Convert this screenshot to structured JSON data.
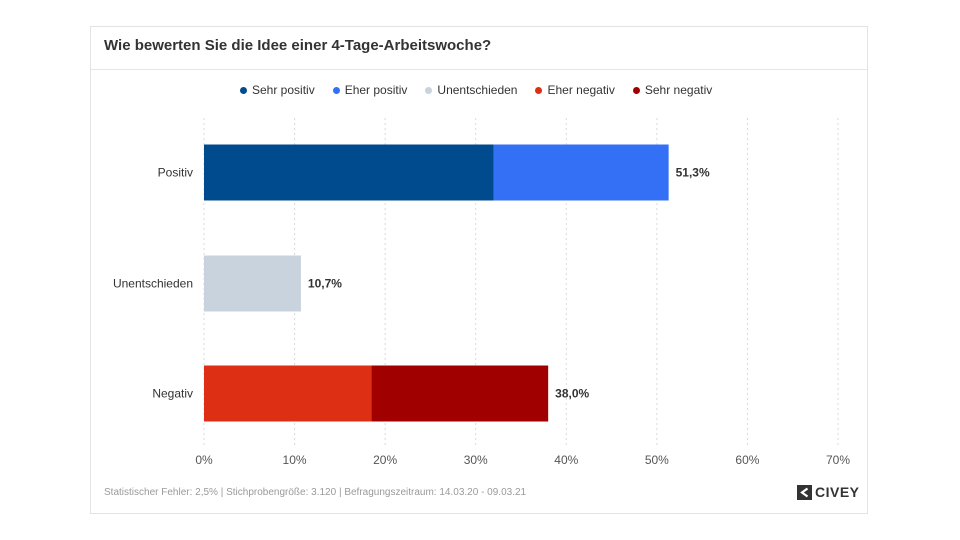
{
  "legend": [
    {
      "label": "Sehr positiv",
      "color": "#004b8d"
    },
    {
      "label": "Eher positiv",
      "color": "#3370f5"
    },
    {
      "label": "Unentschieden",
      "color": "#c8d3dd"
    },
    {
      "label": "Eher negativ",
      "color": "#dc2f13"
    },
    {
      "label": "Sehr negativ",
      "color": "#a00000"
    }
  ],
  "footer": "Statistischer Fehler: 2,5% | Stichprobengröße: 3.120 | Befragungszeitraum: 14.03.20 - 09.03.21",
  "brand": {
    "name": "CIVEY",
    "icon": "civey-logo-icon"
  },
  "chart_data": {
    "type": "bar",
    "orientation": "horizontal",
    "stacked": true,
    "title": "Wie bewerten Sie die Idee einer 4-Tage-Arbeitswoche?",
    "categories": [
      "Positiv",
      "Unentschieden",
      "Negativ"
    ],
    "series": [
      {
        "name": "Sehr positiv",
        "color": "#004b8d",
        "values": [
          32.0,
          0,
          0
        ]
      },
      {
        "name": "Eher positiv",
        "color": "#3370f5",
        "values": [
          19.3,
          0,
          0
        ]
      },
      {
        "name": "Unentschieden",
        "color": "#c8d3dd",
        "values": [
          0,
          10.7,
          0
        ]
      },
      {
        "name": "Eher negativ",
        "color": "#dc2f13",
        "values": [
          0,
          0,
          18.5
        ]
      },
      {
        "name": "Sehr negativ",
        "color": "#a00000",
        "values": [
          0,
          0,
          19.5
        ]
      }
    ],
    "totals": [
      "51,3%",
      "10,7%",
      "38,0%"
    ],
    "xlim": [
      0,
      70
    ],
    "xticks": [
      0,
      10,
      20,
      30,
      40,
      50,
      60,
      70
    ],
    "xtick_labels": [
      "0%",
      "10%",
      "20%",
      "30%",
      "40%",
      "50%",
      "60%",
      "70%"
    ],
    "grid": "vertical dashed",
    "legend_position": "top"
  }
}
